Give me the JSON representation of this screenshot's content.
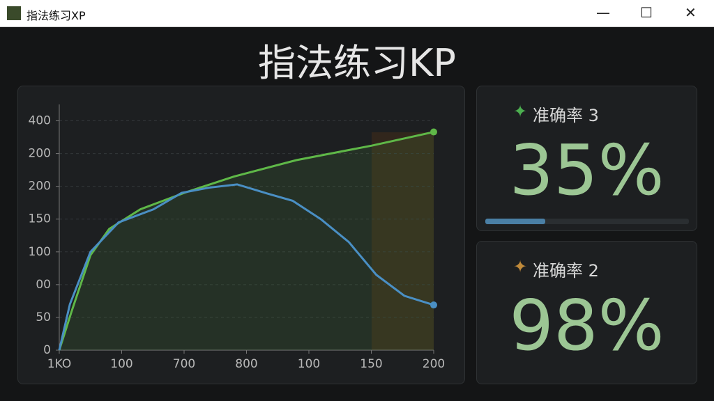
{
  "window": {
    "title": "指法练习XP"
  },
  "header": {
    "title": "指法练习KP"
  },
  "chart_data": {
    "type": "line",
    "grid": true,
    "xlim": [
      0,
      600
    ],
    "ylim": [
      0,
      375
    ],
    "xticks": [
      {
        "value": 0,
        "label": "1KO"
      },
      {
        "value": 100,
        "label": "100"
      },
      {
        "value": 200,
        "label": "700"
      },
      {
        "value": 300,
        "label": "800"
      },
      {
        "value": 400,
        "label": "100"
      },
      {
        "value": 500,
        "label": "150"
      },
      {
        "value": 600,
        "label": "200"
      }
    ],
    "yticks": [
      0,
      50,
      {
        "value": 100,
        "label": "00"
      },
      {
        "value": 150,
        "label": "100"
      },
      {
        "value": 200,
        "label": "150"
      },
      {
        "value": 250,
        "label": "200"
      },
      {
        "value": 300,
        "label": "200"
      },
      {
        "value": 350,
        "label": "400"
      }
    ],
    "series": [
      {
        "color": "#5fb848",
        "x": [
          0,
          20,
          50,
          80,
          130,
          200,
          280,
          380,
          500,
          600
        ],
        "values": [
          0,
          60,
          145,
          185,
          215,
          240,
          265,
          290,
          312,
          333
        ]
      },
      {
        "color": "#4a8fc4",
        "x": [
          0,
          17,
          50,
          95,
          151,
          196,
          240,
          285,
          330,
          374,
          419,
          464,
          508,
          553,
          600
        ],
        "values": [
          0,
          70,
          150,
          195,
          215,
          240,
          248,
          253,
          240,
          228,
          200,
          165,
          115,
          83,
          69
        ]
      }
    ]
  },
  "cards": [
    {
      "label": "准确率 3",
      "value": "35%"
    },
    {
      "label": "准确率 2",
      "value": "98%"
    }
  ]
}
